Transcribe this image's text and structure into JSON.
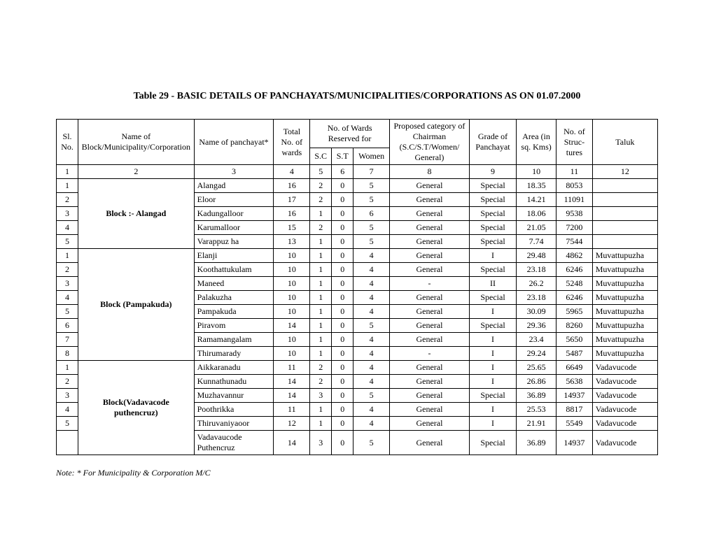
{
  "title": "Table 29 - BASIC DETAILS OF PANCHAYATS/MUNICIPALITIES/CORPORATIONS AS ON 01.07.2000",
  "note": "Note: * For Municipality & Corporation M/C",
  "header": {
    "sl": "Sl. No.",
    "block": "Name of Block/Municipality/Corporation",
    "panchayat": "Name of panchayat*",
    "total": "Total No. of wards",
    "reserved_group": "No. of Wards Reserved for",
    "sc": "S.C",
    "st": "S.T",
    "women": "Women",
    "proposed": "Proposed category of  Chairman (S.C/S.T/Women/ General)",
    "grade": "Grade of Panchayat",
    "area": "Area (in sq. Kms)",
    "struc": "No. of Struc- tures",
    "taluk": "Taluk"
  },
  "numrow": [
    "1",
    "2",
    "3",
    "4",
    "5",
    "6",
    "7",
    "8",
    "9",
    "10",
    "11",
    "12"
  ],
  "groups": [
    {
      "label": "Block :- Alangad",
      "bold": true,
      "rows": [
        {
          "sl": "1",
          "pan": "Alangad",
          "total": "16",
          "sc": "2",
          "st": "0",
          "women": "5",
          "prop": "General",
          "grade": "Special",
          "area": "18.35",
          "struc": "8053",
          "taluk": ""
        },
        {
          "sl": "2",
          "pan": "Eloor",
          "total": "17",
          "sc": "2",
          "st": "0",
          "women": "5",
          "prop": "General",
          "grade": "Special",
          "area": "14.21",
          "struc": "11091",
          "taluk": ""
        },
        {
          "sl": "3",
          "pan": "Kadungalloor",
          "total": "16",
          "sc": "1",
          "st": "0",
          "women": "6",
          "prop": "General",
          "grade": "Special",
          "area": "18.06",
          "struc": "9538",
          "taluk": ""
        },
        {
          "sl": "4",
          "pan": "Karumalloor",
          "total": "15",
          "sc": "2",
          "st": "0",
          "women": "5",
          "prop": "General",
          "grade": "Special",
          "area": "21.05",
          "struc": "7200",
          "taluk": ""
        },
        {
          "sl": "5",
          "pan": "Varappuz ha",
          "total": "13",
          "sc": "1",
          "st": "0",
          "women": "5",
          "prop": "General",
          "grade": "Special",
          "area": "7.74",
          "struc": "7544",
          "taluk": ""
        }
      ]
    },
    {
      "label": "Block (Pampakuda)",
      "bold": true,
      "rows": [
        {
          "sl": "1",
          "pan": "Elanji",
          "total": "10",
          "sc": "1",
          "st": "0",
          "women": "4",
          "prop": "General",
          "grade": "I",
          "area": "29.48",
          "struc": "4862",
          "taluk": "Muvattupuzha"
        },
        {
          "sl": "2",
          "pan": "Koothattukulam",
          "total": "10",
          "sc": "1",
          "st": "0",
          "women": "4",
          "prop": "General",
          "grade": "Special",
          "area": "23.18",
          "struc": "6246",
          "taluk": "Muvattupuzha"
        },
        {
          "sl": "3",
          "pan": "Maneed",
          "total": "10",
          "sc": "1",
          "st": "0",
          "women": "4",
          "prop": "-",
          "grade": "II",
          "area": "26.2",
          "struc": "5248",
          "taluk": "Muvattupuzha"
        },
        {
          "sl": "4",
          "pan": "Palakuzha",
          "total": "10",
          "sc": "1",
          "st": "0",
          "women": "4",
          "prop": "General",
          "grade": "Special",
          "area": "23.18",
          "struc": "6246",
          "taluk": "Muvattupuzha"
        },
        {
          "sl": "5",
          "pan": "Pampakuda",
          "total": "10",
          "sc": "1",
          "st": "0",
          "women": "4",
          "prop": "General",
          "grade": "I",
          "area": "30.09",
          "struc": "5965",
          "taluk": "Muvattupuzha"
        },
        {
          "sl": "6",
          "pan": "Piravom",
          "total": "14",
          "sc": "1",
          "st": "0",
          "women": "5",
          "prop": "General",
          "grade": "Special",
          "area": "29.36",
          "struc": "8260",
          "taluk": "Muvattupuzha"
        },
        {
          "sl": "7",
          "pan": "Ramamangalam",
          "total": "10",
          "sc": "1",
          "st": "0",
          "women": "4",
          "prop": "General",
          "grade": "I",
          "area": "23.4",
          "struc": "5650",
          "taluk": "Muvattupuzha"
        },
        {
          "sl": "8",
          "pan": "Thirumarady",
          "total": "10",
          "sc": "1",
          "st": "0",
          "women": "4",
          "prop": "-",
          "grade": "I",
          "area": "29.24",
          "struc": "5487",
          "taluk": "Muvattupuzha"
        }
      ]
    },
    {
      "label": "Block(Vadavacode puthencruz)",
      "bold": true,
      "rows": [
        {
          "sl": "1",
          "pan": "Aikkaranadu",
          "total": "11",
          "sc": "2",
          "st": "0",
          "women": "4",
          "prop": "General",
          "grade": "I",
          "area": "25.65",
          "struc": "6649",
          "taluk": "Vadavucode"
        },
        {
          "sl": "2",
          "pan": "Kunnathunadu",
          "total": "14",
          "sc": "2",
          "st": "0",
          "women": "4",
          "prop": "General",
          "grade": "I",
          "area": "26.86",
          "struc": "5638",
          "taluk": "Vadavucode"
        },
        {
          "sl": "3",
          "pan": "Muzhavannur",
          "total": "14",
          "sc": "3",
          "st": "0",
          "women": "5",
          "prop": "General",
          "grade": "Special",
          "area": "36.89",
          "struc": "14937",
          "taluk": "Vadavucode"
        },
        {
          "sl": "4",
          "pan": "Poothrikka",
          "total": "11",
          "sc": "1",
          "st": "0",
          "women": "4",
          "prop": "General",
          "grade": "I",
          "area": "25.53",
          "struc": "8817",
          "taluk": "Vadavucode"
        },
        {
          "sl": "5",
          "pan": "Thiruvaniyaoor",
          "total": "12",
          "sc": "1",
          "st": "0",
          "women": "4",
          "prop": "General",
          "grade": "I",
          "area": "21.91",
          "struc": "5549",
          "taluk": "Vadavucode"
        },
        {
          "sl": "",
          "pan": "Vadavaucode Puthencruz",
          "total": "14",
          "sc": "3",
          "st": "0",
          "women": "5",
          "prop": "General",
          "grade": "Special",
          "area": "36.89",
          "struc": "14937",
          "taluk": "Vadavucode"
        }
      ]
    }
  ]
}
